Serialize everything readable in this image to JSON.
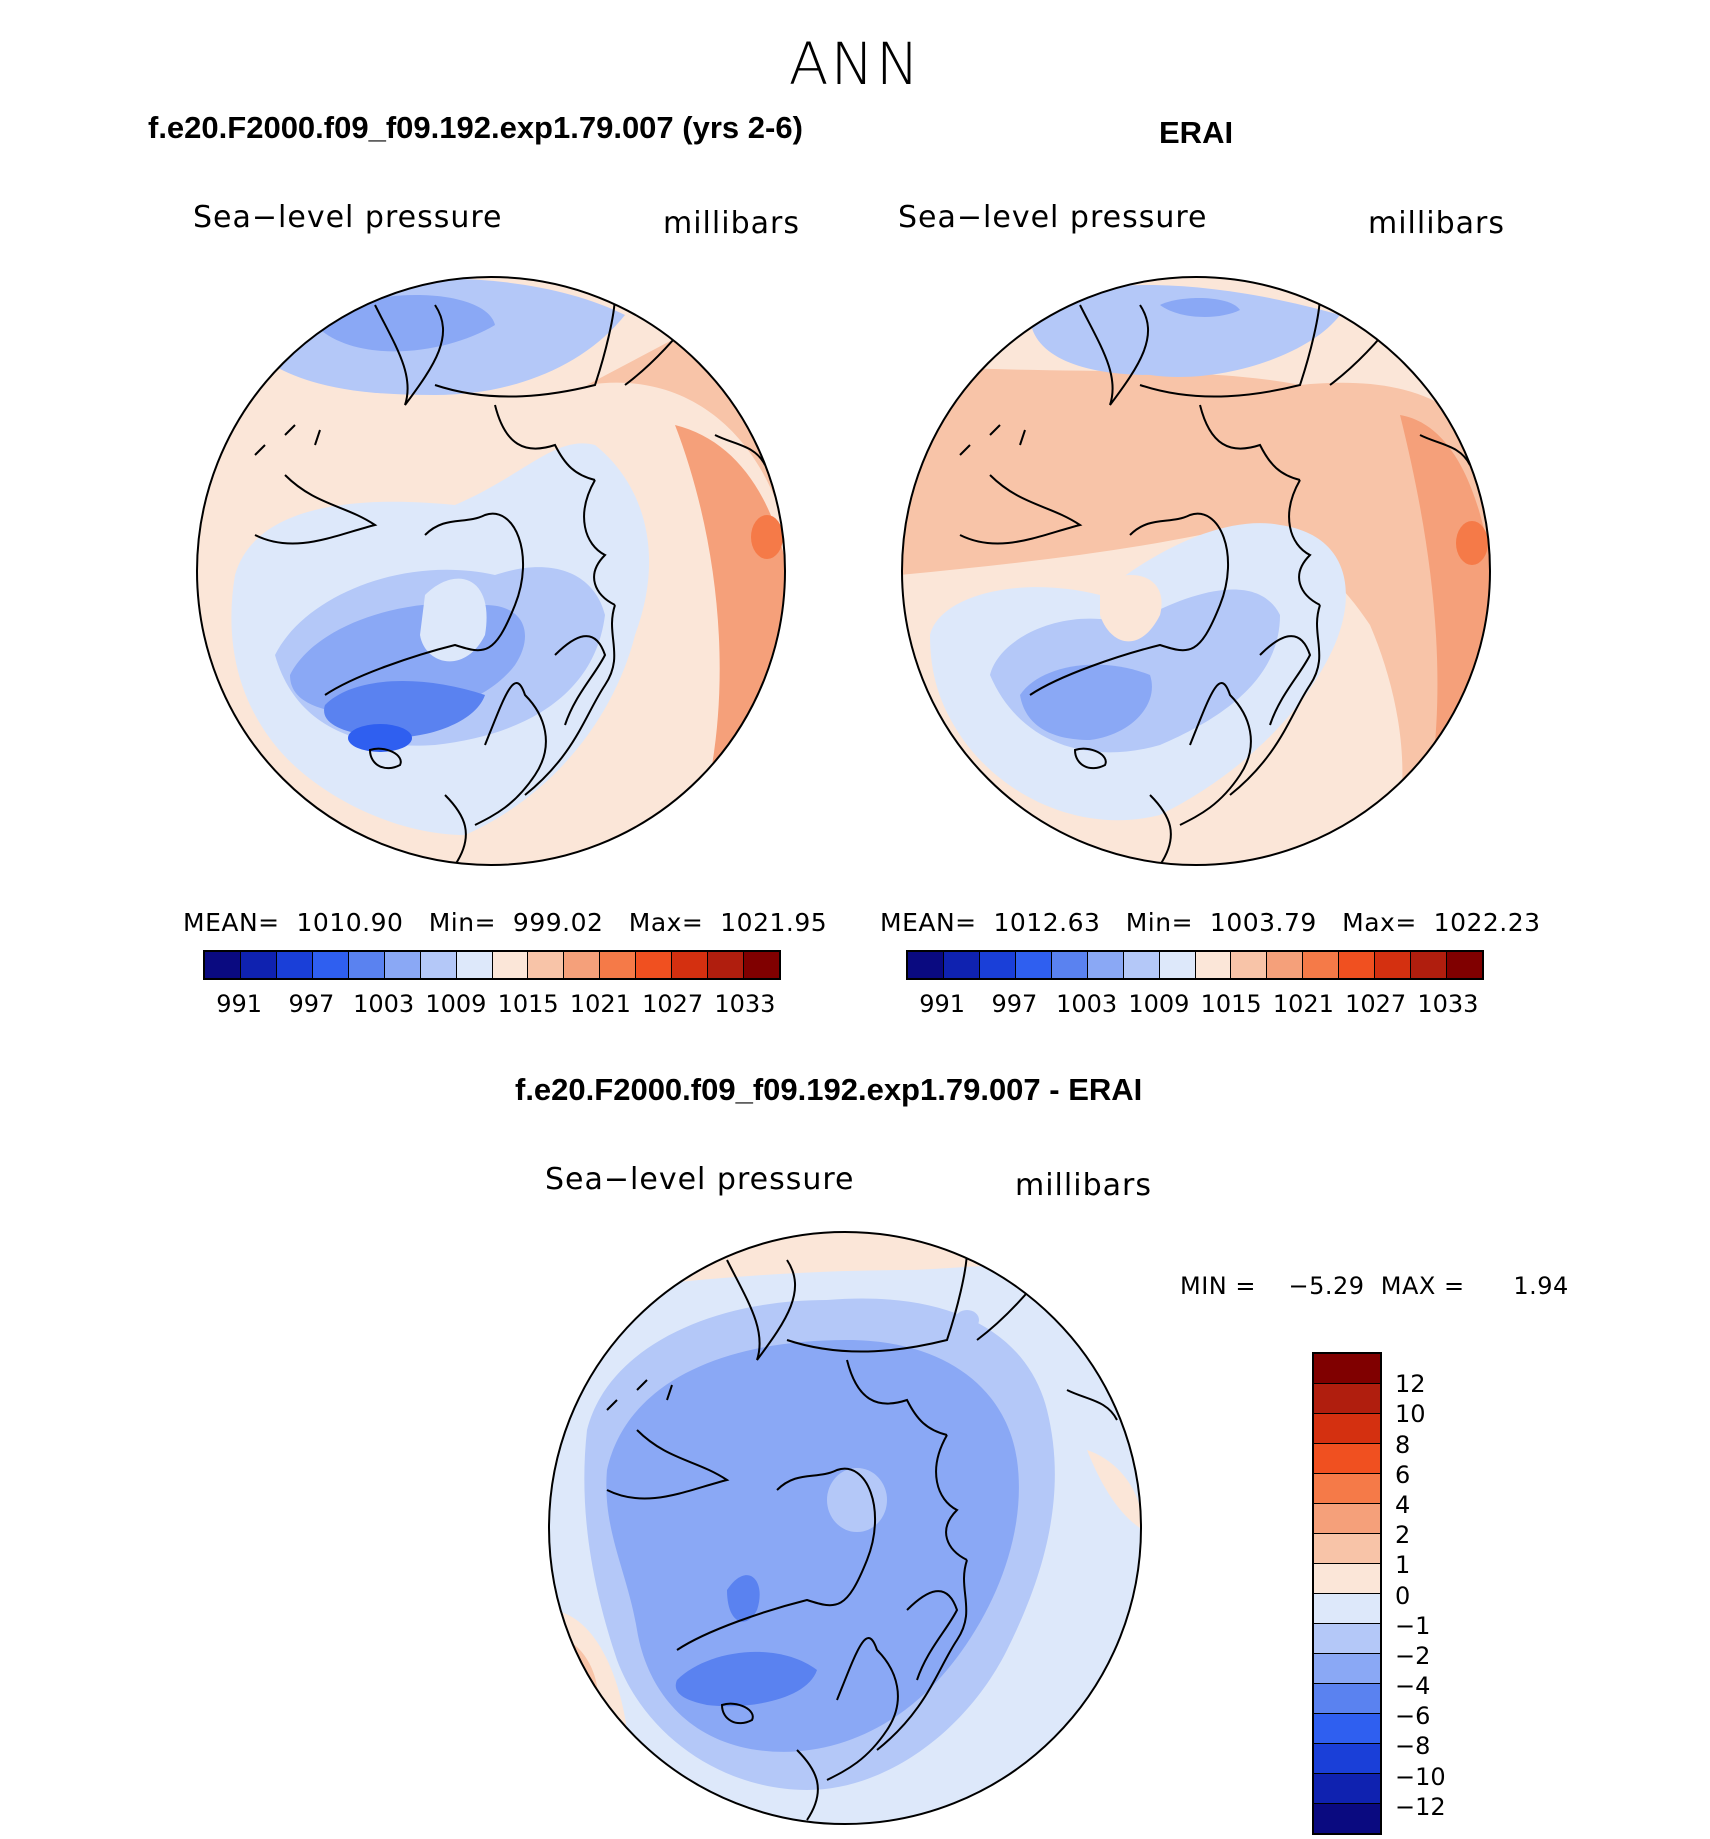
{
  "title": "ANN",
  "panels": {
    "model": {
      "case_title": "f.e20.F2000.f09_f09.192.exp1.79.007 (yrs 2-6)",
      "left_label": "Sea−level pressure",
      "right_label": "millibars",
      "stats": "MEAN=  1010.90   Min=  999.02   Max=  1021.95"
    },
    "obs": {
      "case_title": "ERAI",
      "left_label": "Sea−level pressure",
      "right_label": "millibars",
      "stats": "MEAN=  1012.63   Min=  1003.79   Max=  1022.23"
    },
    "diff": {
      "case_title": "f.e20.F2000.f09_f09.192.exp1.79.007 - ERAI",
      "left_label": "Sea−level pressure",
      "right_label": "millibars",
      "stats": "MIN =    −5.29  MAX =      1.94"
    }
  },
  "colorbar_abs": {
    "ticks": [
      "991",
      "997",
      "1003",
      "1009",
      "1015",
      "1021",
      "1027",
      "1033"
    ],
    "colors": [
      "#0a0a80",
      "#0f22b0",
      "#1a3fd8",
      "#2f5ff0",
      "#5a82f0",
      "#8aa8f5",
      "#b4c8f8",
      "#dde8fa",
      "#fbe6d8",
      "#f8c4a8",
      "#f5a07a",
      "#f57a48",
      "#f05020",
      "#d43010",
      "#b01e0e",
      "#800000"
    ]
  },
  "colorbar_diff": {
    "ticks": [
      "12",
      "10",
      "8",
      "6",
      "4",
      "2",
      "1",
      "0",
      "−1",
      "−2",
      "−4",
      "−6",
      "−8",
      "−10",
      "−12"
    ],
    "colors": [
      "#800000",
      "#b01e0e",
      "#d43010",
      "#f05020",
      "#f57a48",
      "#f5a07a",
      "#f8c4a8",
      "#fbe6d8",
      "#dde8fa",
      "#b4c8f8",
      "#8aa8f5",
      "#5a82f0",
      "#2f5ff0",
      "#1a3fd8",
      "#0f22b0",
      "#0a0a80"
    ]
  },
  "field_colors": {
    "pos3": "#f5a07a",
    "pos2": "#f8c4a8",
    "pos1": "#fbe6d8",
    "pos4": "#f57a48",
    "neg1": "#dde8fa",
    "neg2": "#b4c8f8",
    "neg3": "#8aa8f5",
    "neg4": "#5a82f0",
    "neg5": "#2f5ff0",
    "neg6": "#1a3fd8"
  }
}
